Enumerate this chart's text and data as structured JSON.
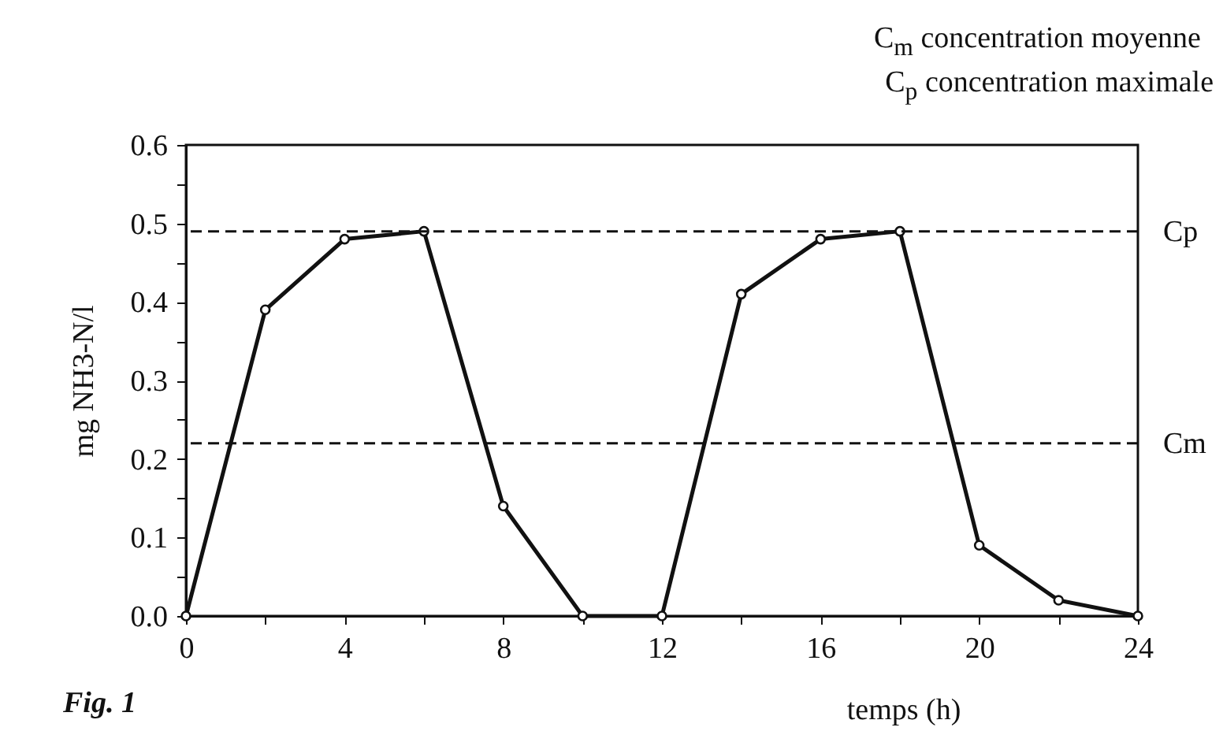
{
  "chart_data": {
    "type": "line",
    "xlabel": "temps (h)",
    "ylabel": "mg NH3-N/l",
    "annotations": [
      "C$_{m}$ concentration moyenne",
      "C$_{p}$ concentration maximale",
      "Fig. 1"
    ],
    "x": [
      0,
      2,
      4,
      6,
      8,
      10,
      12,
      14,
      16,
      18,
      20,
      22,
      24
    ],
    "series": [
      {
        "color": "#111111",
        "values": [
          0,
          0.39,
          0.48,
          0.49,
          0.14,
          0,
          0,
          0.41,
          0.48,
          0.49,
          0.09,
          0.02,
          0
        ]
      }
    ],
    "marker": "circle",
    "line_style": "solid",
    "xlim": [
      0,
      24
    ],
    "xticks": [
      0,
      {
        "value": 2,
        "label": null
      },
      4,
      {
        "value": 6,
        "label": null
      },
      8,
      {
        "value": 10,
        "label": null
      },
      12,
      {
        "value": 14,
        "label": null
      },
      16,
      {
        "value": 18,
        "label": null
      },
      20,
      {
        "value": 22,
        "label": null
      },
      24
    ],
    "ylim": [
      0,
      0.6
    ],
    "yticks": [
      {
        "value": 0,
        "label": "0.0"
      },
      {
        "value": 0.05,
        "label": null
      },
      0.1,
      {
        "value": 0.15,
        "label": null
      },
      0.2,
      {
        "value": 0.25,
        "label": null
      },
      0.3,
      {
        "value": 0.35,
        "label": null
      },
      0.4,
      {
        "value": 0.45,
        "label": null
      },
      0.5,
      {
        "value": 0.55,
        "label": null
      },
      0.6
    ],
    "ref_lines": [
      {
        "axis": "y",
        "value": 0.49,
        "label": "Cp",
        "color": "#111111",
        "line_style": "dashed"
      },
      {
        "axis": "y",
        "value": 0.22,
        "label": "Cm",
        "color": "#111111",
        "line_style": "dashed"
      }
    ]
  }
}
